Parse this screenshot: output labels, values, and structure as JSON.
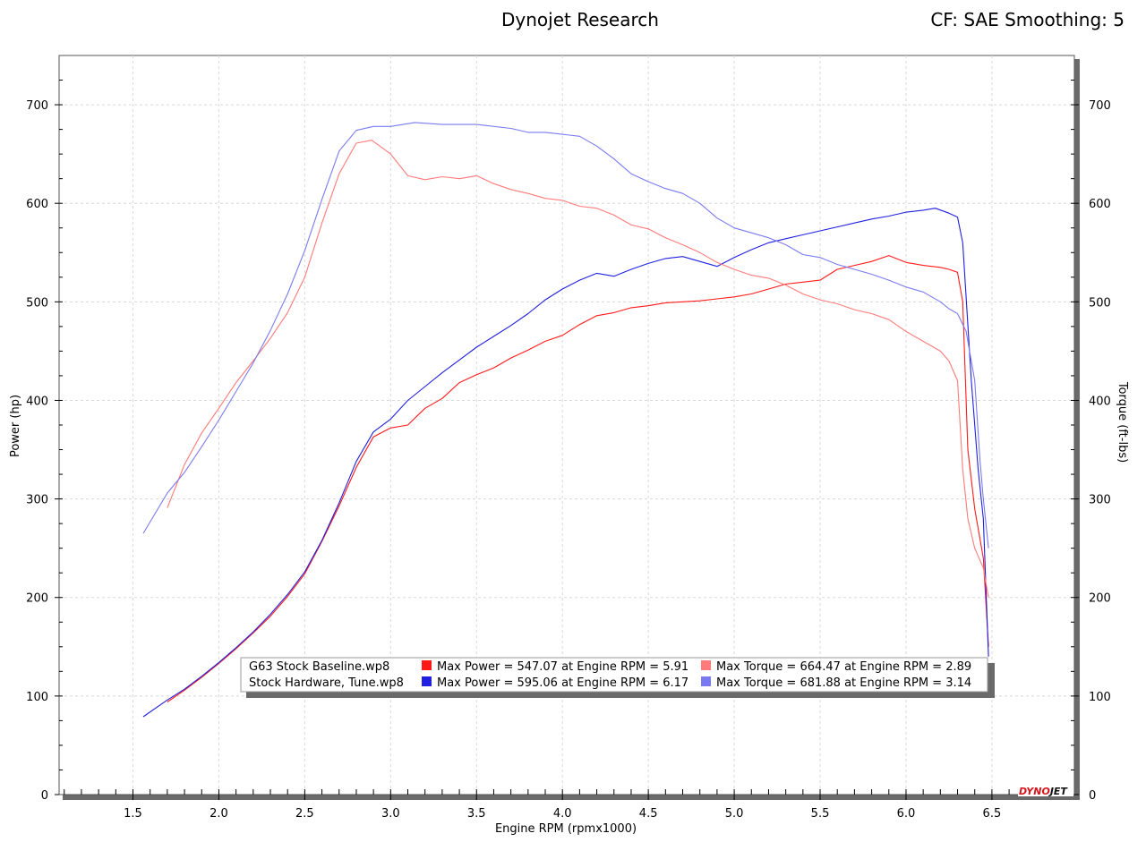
{
  "header": {
    "title": "Dynojet Research",
    "correction": "CF: SAE Smoothing: 5"
  },
  "brand": {
    "part1": "DYNO",
    "part2": "JET"
  },
  "colors": {
    "baseline_power": "#ff1a1a",
    "baseline_torque": "#ff7a7a",
    "tune_power": "#2020e0",
    "tune_torque": "#7a7af0",
    "grid": "#d8d8d8"
  },
  "chart_data": {
    "type": "line",
    "xlabel": "Engine RPM (rpmx1000)",
    "ylabel": "Power (hp)",
    "y2label": "Torque (ft-lbs)",
    "xlim": [
      1.07,
      6.98
    ],
    "ylim": [
      0,
      750
    ],
    "y2lim": [
      0,
      750
    ],
    "xticks": [
      "1.5",
      "2.0",
      "2.5",
      "3.0",
      "3.5",
      "4.0",
      "4.5",
      "5.0",
      "5.5",
      "6.0",
      "6.5"
    ],
    "yticks": [
      "0",
      "100",
      "200",
      "300",
      "400",
      "500",
      "600",
      "700"
    ],
    "grid": true,
    "legend": {
      "placement": "bottom-center",
      "rows": [
        {
          "file": "G63 Stock Baseline.wp8",
          "power": "Max Power = 547.07 at Engine RPM = 5.91",
          "torque": "Max Torque = 664.47 at Engine RPM = 2.89"
        },
        {
          "file": "Stock Hardware, Tune.wp8",
          "power": "Max Power = 595.06 at Engine RPM = 6.17",
          "torque": "Max Torque = 681.88 at Engine RPM = 3.14"
        }
      ]
    },
    "series": [
      {
        "key": "baseline_power",
        "axis": "left",
        "x": [
          1.7,
          1.8,
          1.9,
          2.0,
          2.1,
          2.2,
          2.3,
          2.4,
          2.5,
          2.6,
          2.7,
          2.8,
          2.9,
          3.0,
          3.1,
          3.2,
          3.3,
          3.4,
          3.5,
          3.6,
          3.7,
          3.8,
          3.9,
          4.0,
          4.1,
          4.2,
          4.3,
          4.4,
          4.5,
          4.6,
          4.7,
          4.8,
          4.9,
          5.0,
          5.1,
          5.2,
          5.3,
          5.4,
          5.5,
          5.6,
          5.7,
          5.8,
          5.9,
          6.0,
          6.1,
          6.2,
          6.25,
          6.3,
          6.33,
          6.36,
          6.4,
          6.45,
          6.48
        ],
        "y": [
          94,
          106,
          119,
          133,
          148,
          164,
          181,
          201,
          224,
          257,
          293,
          332,
          363,
          372,
          375,
          392,
          402,
          418,
          426,
          433,
          443,
          451,
          460,
          466,
          477,
          486,
          489,
          494,
          496,
          499,
          500,
          501,
          503,
          505,
          508,
          513,
          518,
          520,
          522,
          533,
          537,
          541,
          547,
          540,
          537,
          535,
          533,
          530,
          500,
          350,
          290,
          240,
          150
        ]
      },
      {
        "key": "tune_power",
        "axis": "left",
        "x": [
          1.56,
          1.7,
          1.8,
          1.9,
          2.0,
          2.1,
          2.2,
          2.3,
          2.4,
          2.5,
          2.6,
          2.7,
          2.8,
          2.9,
          3.0,
          3.1,
          3.2,
          3.3,
          3.4,
          3.5,
          3.6,
          3.7,
          3.8,
          3.9,
          4.0,
          4.1,
          4.2,
          4.3,
          4.4,
          4.5,
          4.6,
          4.7,
          4.8,
          4.9,
          5.0,
          5.1,
          5.2,
          5.3,
          5.4,
          5.5,
          5.6,
          5.7,
          5.8,
          5.9,
          6.0,
          6.1,
          6.17,
          6.25,
          6.3,
          6.33,
          6.38,
          6.42,
          6.45,
          6.48
        ],
        "y": [
          79,
          96,
          107,
          120,
          134,
          149,
          165,
          183,
          203,
          226,
          258,
          296,
          338,
          368,
          381,
          400,
          414,
          428,
          441,
          454,
          465,
          476,
          488,
          502,
          513,
          522,
          529,
          526,
          533,
          539,
          544,
          546,
          541,
          536,
          545,
          553,
          560,
          564,
          568,
          572,
          576,
          580,
          584,
          587,
          591,
          593,
          595,
          590,
          586,
          560,
          420,
          330,
          280,
          140
        ]
      },
      {
        "key": "baseline_torque",
        "axis": "right",
        "x": [
          1.7,
          1.8,
          1.9,
          2.0,
          2.1,
          2.2,
          2.3,
          2.4,
          2.5,
          2.6,
          2.7,
          2.8,
          2.89,
          3.0,
          3.1,
          3.2,
          3.3,
          3.4,
          3.5,
          3.6,
          3.7,
          3.8,
          3.9,
          4.0,
          4.1,
          4.2,
          4.3,
          4.4,
          4.5,
          4.6,
          4.7,
          4.8,
          4.9,
          5.0,
          5.1,
          5.2,
          5.3,
          5.4,
          5.5,
          5.6,
          5.7,
          5.8,
          5.9,
          6.0,
          6.1,
          6.2,
          6.25,
          6.3,
          6.33,
          6.36,
          6.4,
          6.45,
          6.48
        ],
        "y": [
          291,
          335,
          367,
          392,
          418,
          440,
          463,
          489,
          525,
          580,
          630,
          661,
          664,
          650,
          628,
          624,
          627,
          625,
          628,
          620,
          614,
          610,
          605,
          603,
          597,
          595,
          588,
          578,
          574,
          565,
          558,
          550,
          540,
          533,
          527,
          524,
          517,
          508,
          502,
          498,
          492,
          488,
          482,
          470,
          460,
          450,
          440,
          420,
          330,
          280,
          250,
          230,
          200
        ]
      },
      {
        "key": "tune_torque",
        "axis": "right",
        "x": [
          1.56,
          1.7,
          1.8,
          1.9,
          2.0,
          2.1,
          2.2,
          2.3,
          2.4,
          2.5,
          2.6,
          2.7,
          2.8,
          2.9,
          3.0,
          3.14,
          3.3,
          3.5,
          3.7,
          3.8,
          3.9,
          4.0,
          4.1,
          4.2,
          4.3,
          4.4,
          4.5,
          4.6,
          4.7,
          4.8,
          4.9,
          5.0,
          5.1,
          5.2,
          5.3,
          5.4,
          5.5,
          5.6,
          5.7,
          5.8,
          5.9,
          6.0,
          6.1,
          6.2,
          6.25,
          6.3,
          6.35,
          6.4,
          6.43,
          6.45,
          6.48
        ],
        "y": [
          265,
          306,
          327,
          353,
          380,
          409,
          438,
          471,
          508,
          552,
          604,
          653,
          674,
          678,
          678,
          682,
          680,
          680,
          676,
          672,
          672,
          670,
          668,
          658,
          645,
          630,
          622,
          615,
          610,
          600,
          585,
          575,
          570,
          565,
          558,
          548,
          545,
          538,
          533,
          528,
          522,
          515,
          510,
          500,
          493,
          488,
          470,
          420,
          340,
          300,
          250
        ]
      }
    ]
  }
}
